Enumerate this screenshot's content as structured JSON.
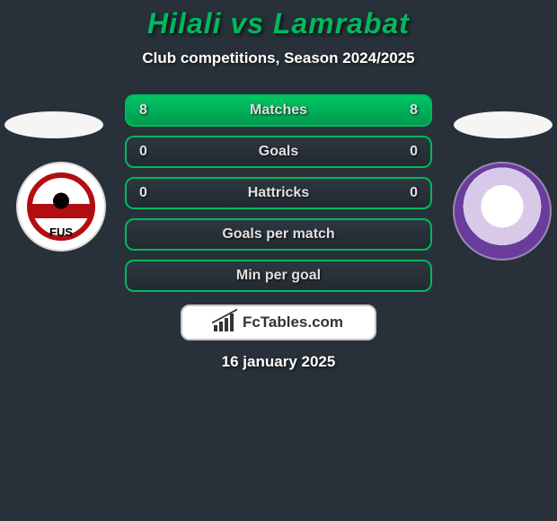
{
  "header": {
    "title": "Hilali vs Lamrabat",
    "subtitle": "Club competitions, Season 2024/2025"
  },
  "stats": {
    "rows": [
      {
        "left": "8",
        "label": "Matches",
        "right": "8",
        "filled": true
      },
      {
        "left": "0",
        "label": "Goals",
        "right": "0",
        "filled": false
      },
      {
        "left": "0",
        "label": "Hattricks",
        "right": "0",
        "filled": false
      },
      {
        "left": "",
        "label": "Goals per match",
        "right": "",
        "filled": false
      },
      {
        "left": "",
        "label": "Min per goal",
        "right": "",
        "filled": false
      }
    ],
    "border_color": "#00b85f",
    "fill_gradient_top": "#00c563",
    "fill_gradient_bottom": "#009a4e"
  },
  "brand": {
    "text": "FcTables.com"
  },
  "footer": {
    "date": "16 january 2025"
  },
  "clubs": {
    "left_code": "FUS"
  },
  "colors": {
    "background": "#283139",
    "accent": "#00b85f",
    "text": "#ffffff"
  }
}
